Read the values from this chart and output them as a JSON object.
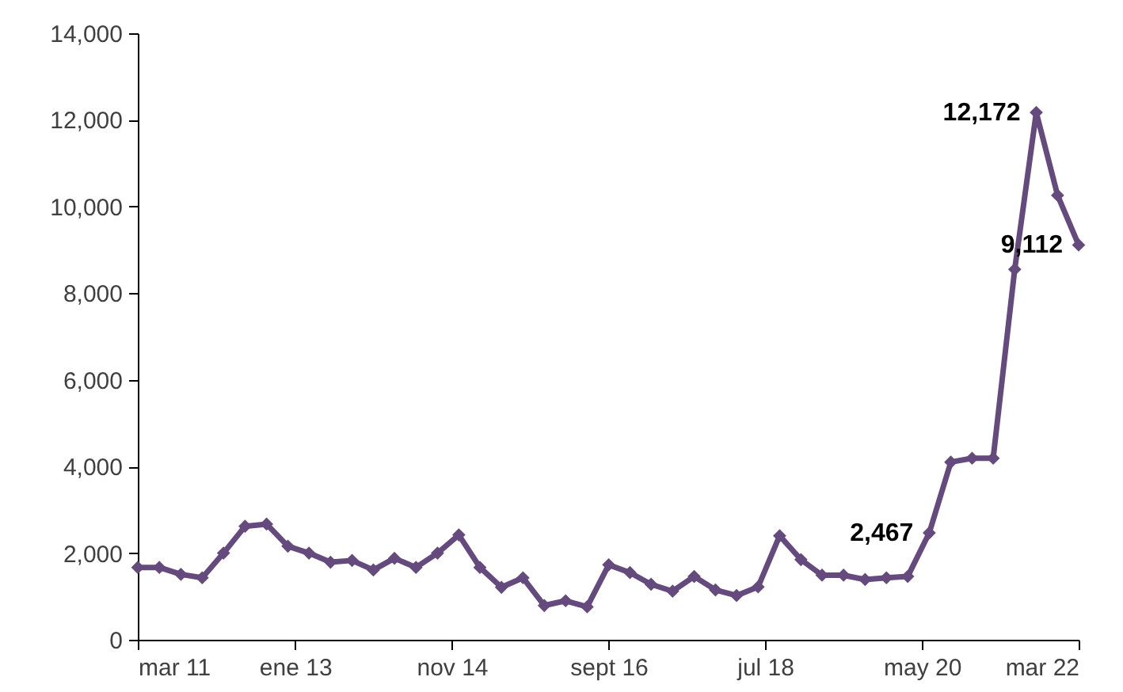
{
  "chart_data": {
    "type": "line",
    "x": [
      "2011-03",
      "2011-06",
      "2011-09",
      "2011-12",
      "2012-03",
      "2012-06",
      "2012-09",
      "2012-12",
      "2013-03",
      "2013-06",
      "2013-09",
      "2013-12",
      "2014-03",
      "2014-06",
      "2014-09",
      "2014-12",
      "2015-03",
      "2015-06",
      "2015-09",
      "2015-12",
      "2016-03",
      "2016-06",
      "2016-09",
      "2016-12",
      "2017-03",
      "2017-06",
      "2017-09",
      "2017-12",
      "2018-03",
      "2018-06",
      "2018-09",
      "2018-12",
      "2019-03",
      "2019-06",
      "2019-09",
      "2019-12",
      "2020-03",
      "2020-06",
      "2020-09",
      "2020-12",
      "2021-03",
      "2021-06",
      "2021-09",
      "2021-12",
      "2022-03"
    ],
    "series": [
      {
        "color": "#654a7d",
        "values": [
          1670,
          1670,
          1510,
          1430,
          2000,
          2620,
          2670,
          2160,
          2000,
          1790,
          1830,
          1610,
          1880,
          1670,
          2000,
          2420,
          1670,
          1210,
          1430,
          790,
          900,
          760,
          1730,
          1550,
          1280,
          1120,
          1460,
          1150,
          1020,
          1220,
          2400,
          1850,
          1490,
          1490,
          1390,
          1430,
          1460,
          2467,
          4100,
          4190,
          4190,
          8550,
          12172,
          10260,
          9112
        ],
        "value_labels": [
          null,
          null,
          null,
          null,
          null,
          null,
          null,
          null,
          null,
          null,
          null,
          null,
          null,
          null,
          null,
          null,
          null,
          null,
          null,
          null,
          null,
          null,
          null,
          null,
          null,
          null,
          null,
          null,
          null,
          null,
          null,
          null,
          null,
          null,
          null,
          null,
          null,
          "2,467",
          null,
          null,
          null,
          null,
          "12,172",
          null,
          "9,112"
        ]
      }
    ],
    "xlim": [
      "2011-03",
      "2022-03"
    ],
    "xticks": [
      {
        "value": "2011-03",
        "label": "mar 11"
      },
      {
        "value": "2013-01",
        "label": "ene 13"
      },
      {
        "value": "2014-11",
        "label": "nov 14"
      },
      {
        "value": "2016-09",
        "label": "sept 16"
      },
      {
        "value": "2018-07",
        "label": "jul 18"
      },
      {
        "value": "2020-05",
        "label": "may 20"
      },
      {
        "value": "2022-03",
        "label": "mar 22"
      }
    ],
    "ylim": [
      0,
      14000
    ],
    "yticks": [
      0,
      {
        "value": 2000,
        "label": "2,000"
      },
      {
        "value": 4000,
        "label": "4,000"
      },
      {
        "value": 6000,
        "label": "6,000"
      },
      {
        "value": 8000,
        "label": "8,000"
      },
      {
        "value": 10000,
        "label": "10,000"
      },
      {
        "value": 12000,
        "label": "12,000"
      },
      {
        "value": 14000,
        "label": "14,000"
      }
    ],
    "marker": "diamond",
    "line_style": "solid",
    "grid": false
  }
}
